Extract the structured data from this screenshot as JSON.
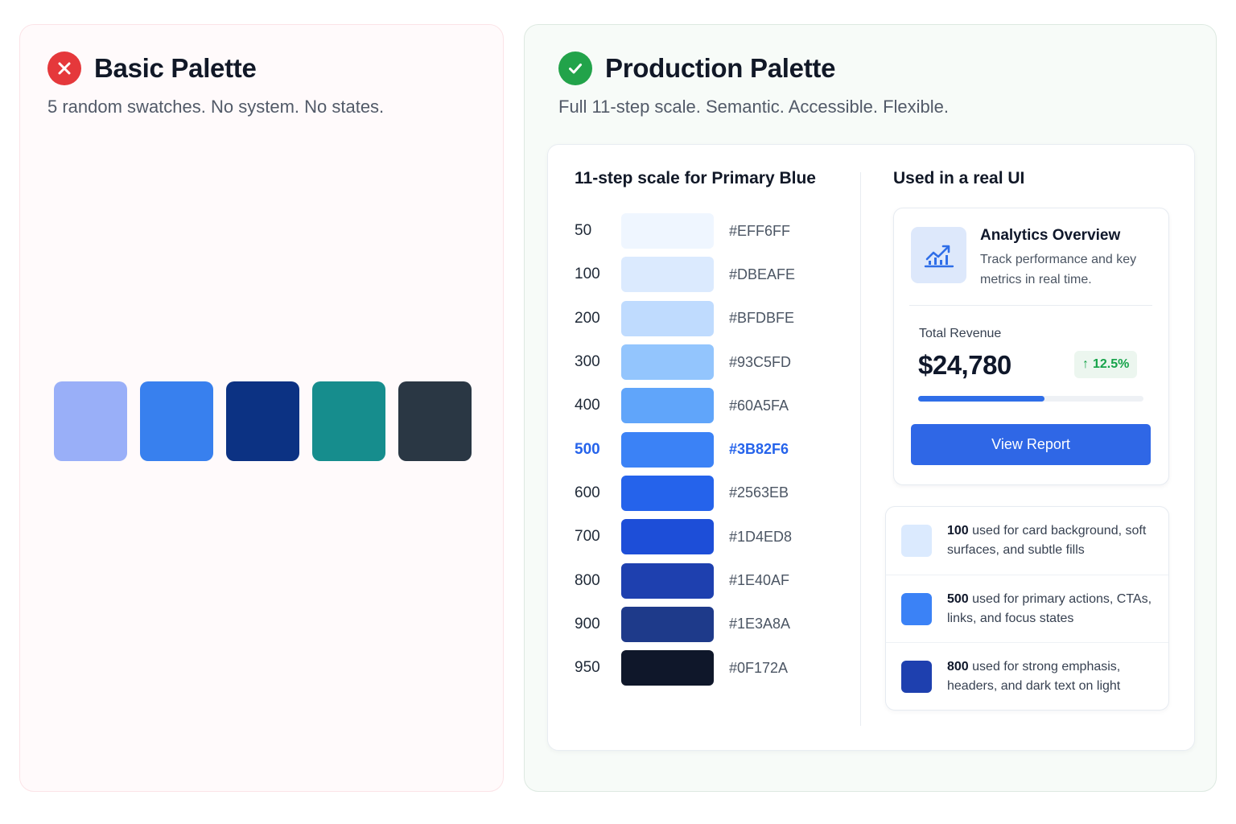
{
  "basic": {
    "title": "Basic Palette",
    "subtitle": "5 random swatches. No system. No states.",
    "status_icon": "x-circle-icon",
    "swatches": [
      "#99AFF8",
      "#3880EE",
      "#0C3283",
      "#168D8D",
      "#2A3744"
    ]
  },
  "production": {
    "title": "Production Palette",
    "subtitle": "Full 11-step scale. Semantic. Accessible. Flexible.",
    "status_icon": "check-circle-icon",
    "scale": {
      "title": "11-step scale for Primary Blue",
      "active_step": "500",
      "steps": [
        {
          "step": "50",
          "hex": "#EFF6FF"
        },
        {
          "step": "100",
          "hex": "#DBEAFE"
        },
        {
          "step": "200",
          "hex": "#BFDBFE"
        },
        {
          "step": "300",
          "hex": "#93C5FD"
        },
        {
          "step": "400",
          "hex": "#60A5FA"
        },
        {
          "step": "500",
          "hex": "#3B82F6"
        },
        {
          "step": "600",
          "hex": "#2563EB"
        },
        {
          "step": "700",
          "hex": "#1D4ED8"
        },
        {
          "step": "800",
          "hex": "#1E40AF"
        },
        {
          "step": "900",
          "hex": "#1E3A8A"
        },
        {
          "step": "950",
          "hex": "#0F172A"
        }
      ]
    },
    "ui": {
      "title": "Used in a real UI",
      "card": {
        "icon": "chart-trend-up-icon",
        "title": "Analytics Overview",
        "description": "Track performance and key metrics in real time.",
        "revenue_label": "Total Revenue",
        "revenue_value": "$24,780",
        "change": "12.5%",
        "change_color": "#16A34A",
        "progress": 0.56,
        "button_label": "View Report"
      },
      "legend": [
        {
          "step": "100",
          "color": "#DBEAFE",
          "text": "used for card background, soft surfaces, and subtle fills"
        },
        {
          "step": "500",
          "color": "#3B82F6",
          "text": "used for primary actions, CTAs, links, and focus states"
        },
        {
          "step": "800",
          "color": "#1E40AF",
          "text": "used for strong emphasis, headers, and dark text on light"
        }
      ]
    }
  }
}
